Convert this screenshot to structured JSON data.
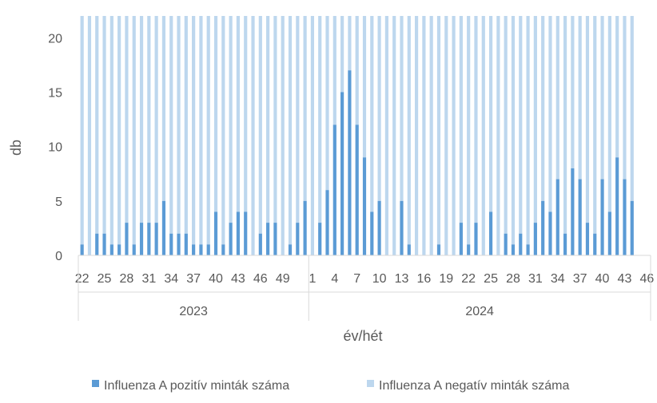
{
  "chart_data": {
    "type": "bar",
    "stacked": true,
    "xlabel": "év/hét",
    "ylabel": "db",
    "ylim": [
      0,
      22
    ],
    "yticks": [
      0,
      5,
      10,
      15,
      20
    ],
    "grid": false,
    "legend_position": "bottom",
    "years": [
      {
        "label": "2023",
        "weeks": [
          22,
          23,
          24,
          25,
          26,
          27,
          28,
          29,
          30,
          31,
          32,
          33,
          34,
          35,
          36,
          37,
          38,
          39,
          40,
          41,
          42,
          43,
          44,
          45,
          46,
          47,
          48,
          49,
          50,
          51,
          52
        ]
      },
      {
        "label": "2024",
        "weeks": [
          1,
          2,
          3,
          4,
          5,
          6,
          7,
          8,
          9,
          10,
          11,
          12,
          13,
          14,
          15,
          16,
          17,
          18,
          19,
          20,
          21,
          22,
          23,
          24,
          25,
          26,
          27,
          28,
          29,
          30,
          31,
          32,
          33,
          34,
          35,
          36,
          37,
          38,
          39,
          40,
          41,
          42,
          43,
          44,
          45,
          46
        ]
      }
    ],
    "x_tick_labels": [
      "22",
      "25",
      "28",
      "31",
      "34",
      "37",
      "40",
      "43",
      "46",
      "49",
      "1",
      "4",
      "7",
      "10",
      "13",
      "16",
      "19",
      "22",
      "25",
      "28",
      "31",
      "34",
      "37",
      "40",
      "43",
      "46"
    ],
    "series": [
      {
        "name": "Influenza A pozitív minták száma",
        "color": "#5b9bd5",
        "values": [
          1,
          0,
          2,
          2,
          1,
          1,
          3,
          1,
          3,
          3,
          3,
          5,
          2,
          2,
          2,
          1,
          1,
          1,
          4,
          1,
          3,
          4,
          4,
          0,
          2,
          3,
          3,
          0,
          1,
          3,
          5,
          0,
          3,
          6,
          12,
          15,
          17,
          12,
          9,
          4,
          5,
          0,
          0,
          5,
          1,
          0,
          0,
          0,
          1,
          0,
          0,
          3,
          1,
          3,
          0,
          4,
          0,
          2,
          1,
          2,
          1,
          3,
          5,
          4,
          7,
          2,
          8,
          7,
          3,
          2,
          7,
          4,
          9,
          7,
          5
        ]
      },
      {
        "name": "Influenza A negatív minták száma",
        "color": "#bdd7ee",
        "values": [
          21,
          22,
          20,
          20,
          21,
          21,
          19,
          21,
          19,
          19,
          19,
          17,
          20,
          20,
          20,
          21,
          21,
          21,
          18,
          21,
          19,
          18,
          18,
          22,
          20,
          19,
          19,
          22,
          21,
          19,
          17,
          22,
          19,
          16,
          10,
          7,
          5,
          10,
          13,
          18,
          17,
          22,
          22,
          17,
          21,
          22,
          22,
          22,
          21,
          22,
          22,
          19,
          21,
          19,
          22,
          18,
          22,
          20,
          21,
          20,
          21,
          19,
          17,
          18,
          15,
          20,
          14,
          15,
          19,
          20,
          15,
          18,
          13,
          15,
          17
        ]
      }
    ]
  }
}
